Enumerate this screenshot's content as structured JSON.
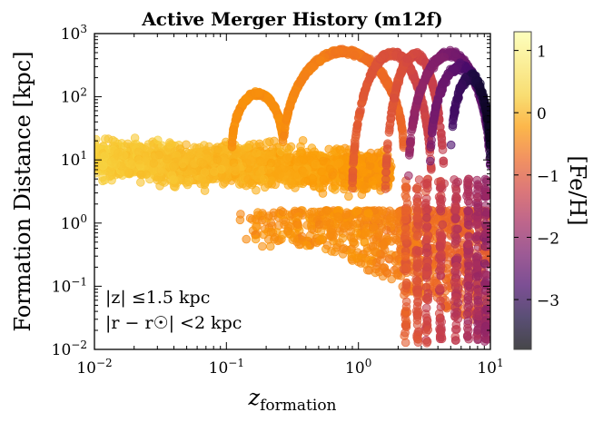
{
  "chart_data": {
    "type": "scatter",
    "title": "Active Merger History (m12f)",
    "xlabel": "z_formation",
    "xlabel_parts": {
      "base": "z",
      "sub": "formation"
    },
    "ylabel": "Formation Distance [kpc]",
    "x_scale": "log",
    "y_scale": "log",
    "xlim": [
      0.01,
      10
    ],
    "ylim": [
      0.01,
      1000
    ],
    "x_ticks": [
      {
        "value": 0.01,
        "base": "10",
        "exp": "−2"
      },
      {
        "value": 0.1,
        "base": "10",
        "exp": "−1"
      },
      {
        "value": 1,
        "base": "10",
        "exp": "0"
      },
      {
        "value": 10,
        "base": "10",
        "exp": "1"
      }
    ],
    "y_ticks": [
      {
        "value": 0.01,
        "base": "10",
        "exp": "−2"
      },
      {
        "value": 0.1,
        "base": "10",
        "exp": "−1"
      },
      {
        "value": 1,
        "base": "10",
        "exp": "0"
      },
      {
        "value": 10,
        "base": "10",
        "exp": "1"
      },
      {
        "value": 100,
        "base": "10",
        "exp": "2"
      },
      {
        "value": 1000,
        "base": "10",
        "exp": "3"
      }
    ],
    "grid": false,
    "annotations": [
      "|z| ≤1.5 kpc",
      "|r − r☉| <2 kpc"
    ],
    "colorbar": {
      "label": "[Fe/H]",
      "colormap": "inferno",
      "range": [
        -3.8,
        1.3
      ],
      "ticks": [
        {
          "value": 1,
          "label": "1"
        },
        {
          "value": 0,
          "label": "0"
        },
        {
          "value": -1,
          "label": "−1"
        },
        {
          "value": -2,
          "label": "−2"
        },
        {
          "value": -3,
          "label": "−3"
        }
      ]
    },
    "groups": [
      {
        "name": "main disk cloud",
        "x_range": [
          0.01,
          1.5
        ],
        "y_range": [
          2,
          25
        ],
        "feh_range": [
          -0.2,
          0.4
        ],
        "description": "dense band of orange points near 10 kpc"
      },
      {
        "name": "low-distance tail",
        "x_range": [
          0.1,
          10
        ],
        "y_range": [
          0.01,
          2
        ],
        "feh_range": [
          -1.3,
          -0.3
        ],
        "description": "vertical streaks dropping to small distances at z 2-10"
      },
      {
        "name": "merger arc 1",
        "x_range": [
          0.11,
          0.27
        ],
        "y_range": [
          12,
          115
        ],
        "peak": [
          0.18,
          112
        ],
        "feh": -0.3
      },
      {
        "name": "merger arc 2",
        "x_range": [
          0.27,
          2.2
        ],
        "y_range": [
          12,
          520
        ],
        "peak": [
          1.2,
          520
        ],
        "feh": -0.6
      },
      {
        "name": "merger arcs high-z",
        "x_range": [
          2,
          10
        ],
        "y_range": [
          5,
          500
        ],
        "feh_range": [
          -3.8,
          -1.0
        ],
        "description": "several arcs of metal-poor purple points at high redshift"
      }
    ]
  }
}
